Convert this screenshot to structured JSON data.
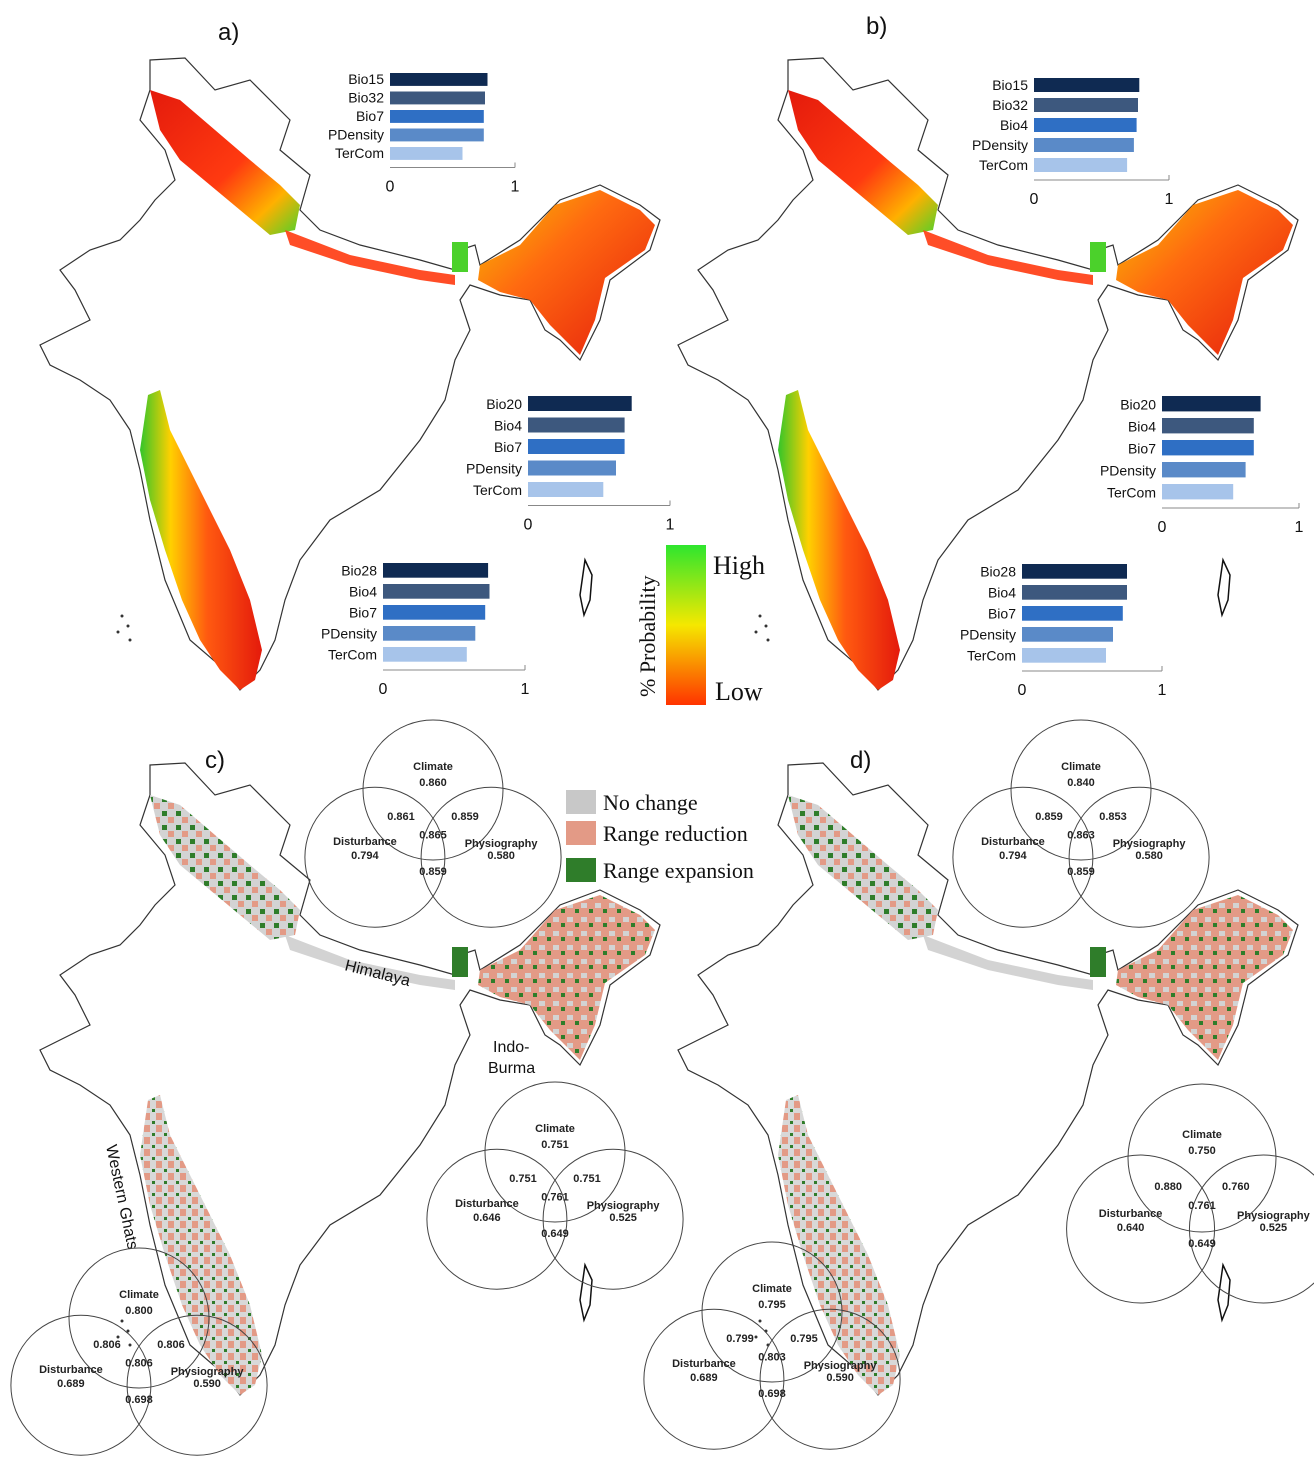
{
  "panels": [
    {
      "id": "a",
      "letter": "a)"
    },
    {
      "id": "b",
      "letter": "b)"
    },
    {
      "id": "c",
      "letter": "c)"
    },
    {
      "id": "d",
      "letter": "d)"
    }
  ],
  "bar_charts": [
    {
      "panel": "a",
      "region": "Himalaya",
      "labels": [
        "Bio15",
        "Bio32",
        "Bio7",
        "PDensity",
        "TerCom"
      ],
      "values": [
        0.78,
        0.76,
        0.75,
        0.75,
        0.58
      ],
      "ticks": [
        "0",
        "1"
      ]
    },
    {
      "panel": "a",
      "region": "Indo-Burma",
      "labels": [
        "Bio20",
        "Bio4",
        "Bio7",
        "PDensity",
        "TerCom"
      ],
      "values": [
        0.73,
        0.68,
        0.68,
        0.62,
        0.53
      ],
      "ticks": [
        "0",
        "1"
      ]
    },
    {
      "panel": "a",
      "region": "Western Ghats",
      "labels": [
        "Bio28",
        "Bio4",
        "Bio7",
        "PDensity",
        "TerCom"
      ],
      "values": [
        0.74,
        0.75,
        0.72,
        0.65,
        0.59
      ],
      "ticks": [
        "0",
        "1"
      ]
    },
    {
      "panel": "b",
      "region": "Himalaya",
      "labels": [
        "Bio15",
        "Bio32",
        "Bio4",
        "PDensity",
        "TerCom"
      ],
      "values": [
        0.78,
        0.77,
        0.76,
        0.74,
        0.69
      ],
      "ticks": [
        "0",
        "1"
      ]
    },
    {
      "panel": "b",
      "region": "Indo-Burma",
      "labels": [
        "Bio20",
        "Bio4",
        "Bio7",
        "PDensity",
        "TerCom"
      ],
      "values": [
        0.72,
        0.67,
        0.67,
        0.61,
        0.52
      ],
      "ticks": [
        "0",
        "1"
      ]
    },
    {
      "panel": "b",
      "region": "Western Ghats",
      "labels": [
        "Bio28",
        "Bio4",
        "Bio7",
        "PDensity",
        "TerCom"
      ],
      "values": [
        0.75,
        0.75,
        0.72,
        0.65,
        0.6
      ],
      "ticks": [
        "0",
        "1"
      ]
    }
  ],
  "bar_colors": [
    "#0f2a52",
    "#3d587e",
    "#2f6fc4",
    "#5a8ac8",
    "#a7c4ea"
  ],
  "probability_scale": {
    "title": "% Probability",
    "high": "High",
    "low": "Low",
    "colors": [
      "#2ee62e",
      "#f5e800",
      "#ff3300"
    ]
  },
  "change_legend": [
    {
      "label": "No change",
      "color": "#c8c8c8"
    },
    {
      "label": "Range reduction",
      "color": "#e39a86"
    },
    {
      "label": "Range expansion",
      "color": "#2f7d2a"
    }
  ],
  "region_labels": {
    "himalaya": "Himalaya",
    "indo_burma_1": "Indo-",
    "indo_burma_2": "Burma",
    "western_ghats": "Western Ghats"
  },
  "venn_diagrams": [
    {
      "panel": "c",
      "region": "Himalaya",
      "circle_labels": [
        "Climate",
        "Disturbance",
        "Physiography"
      ],
      "singles": [
        "0.860",
        "0.794",
        "0.580"
      ],
      "pairs": [
        "0.861",
        "0.859",
        "0.859"
      ],
      "center": "0.865"
    },
    {
      "panel": "c",
      "region": "Indo-Burma",
      "circle_labels": [
        "Climate",
        "Disturbance",
        "Physiography"
      ],
      "singles": [
        "0.751",
        "0.646",
        "0.525"
      ],
      "pairs": [
        "0.751",
        "0.751",
        "0.649"
      ],
      "center": "0.761"
    },
    {
      "panel": "c",
      "region": "Western Ghats",
      "circle_labels": [
        "Climate",
        "Disturbance",
        "Physiography"
      ],
      "singles": [
        "0.800",
        "0.689",
        "0.590"
      ],
      "pairs": [
        "0.806",
        "0.806",
        "0.698"
      ],
      "center": "0.806"
    },
    {
      "panel": "d",
      "region": "Himalaya",
      "circle_labels": [
        "Climate",
        "Disturbance",
        "Physiography"
      ],
      "singles": [
        "0.840",
        "0.794",
        "0.580"
      ],
      "pairs": [
        "0.859",
        "0.853",
        "0.859"
      ],
      "center": "0.863"
    },
    {
      "panel": "d",
      "region": "Indo-Burma",
      "circle_labels": [
        "Climate",
        "Disturbance",
        "Physiography"
      ],
      "singles": [
        "0.750",
        "0.640",
        "0.525"
      ],
      "pairs": [
        "0.880",
        "0.760",
        "0.649"
      ],
      "center": "0.761"
    },
    {
      "panel": "d",
      "region": "Western Ghats",
      "circle_labels": [
        "Climate",
        "Disturbance",
        "Physiography"
      ],
      "singles": [
        "0.795",
        "0.689",
        "0.590"
      ],
      "pairs": [
        "0.799",
        "0.795",
        "0.698"
      ],
      "center": "0.803"
    }
  ]
}
